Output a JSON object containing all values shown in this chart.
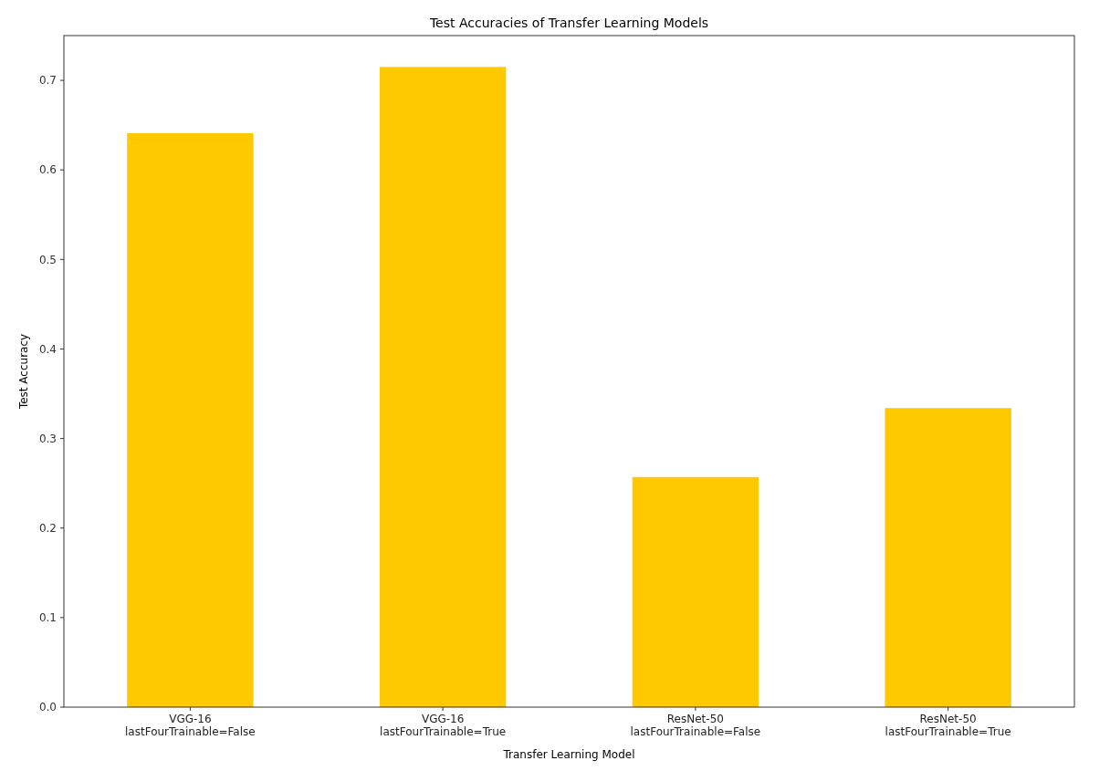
{
  "chart_data": {
    "type": "bar",
    "title": "Test Accuracies of Transfer Learning Models",
    "xlabel": "Transfer Learning Model",
    "ylabel": "Test Accuracy",
    "categories": [
      "VGG-16\nlastFourTrainable=False",
      "VGG-16\nlastFourTrainable=True",
      "ResNet-50\nlastFourTrainable=False",
      "ResNet-50\nlastFourTrainable=True"
    ],
    "values": [
      0.641,
      0.715,
      0.257,
      0.334
    ],
    "color": "#ffc900",
    "ylim": [
      0,
      0.75
    ],
    "yticks": [
      {
        "value": 0,
        "label": "0.0"
      },
      0.1,
      0.2,
      0.3,
      0.4,
      0.5,
      0.6,
      0.7
    ],
    "grid": false
  }
}
